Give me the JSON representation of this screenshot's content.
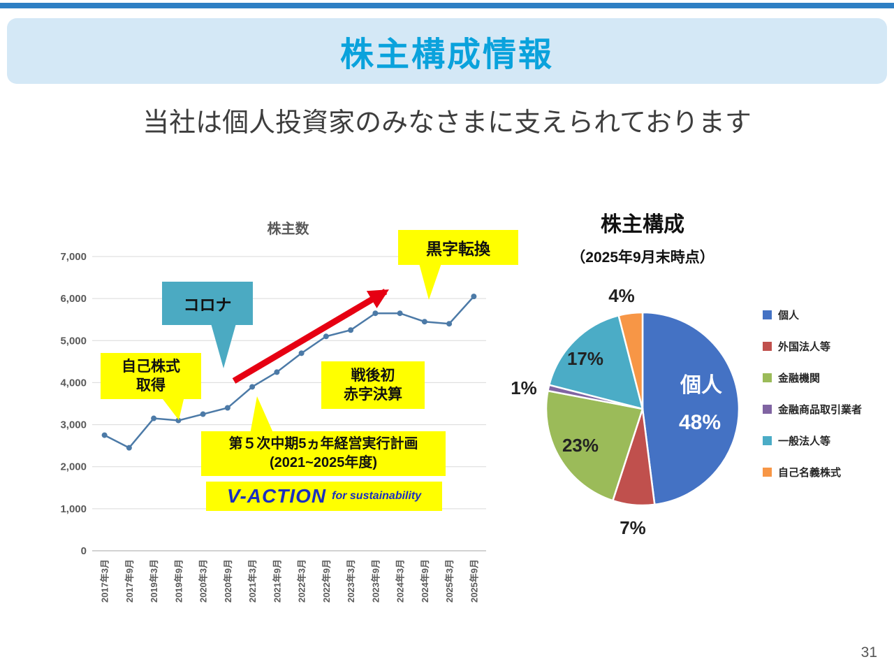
{
  "slide": {
    "title": "株主構成情報",
    "subtitle": "当社は個人投資家のみなさまに支えられております",
    "page_number": "31"
  },
  "chart_data": [
    {
      "type": "line",
      "title": "株主数",
      "categories": [
        "2017年3月",
        "2017年9月",
        "2019年3月",
        "2019年9月",
        "2020年3月",
        "2020年9月",
        "2021年3月",
        "2021年9月",
        "2022年3月",
        "2022年9月",
        "2023年3月",
        "2023年9月",
        "2024年3月",
        "2024年9月",
        "2025年3月",
        "2025年9月"
      ],
      "values": [
        2750,
        2450,
        3150,
        3100,
        3250,
        3400,
        3900,
        4250,
        4700,
        5100,
        5250,
        5650,
        5650,
        5450,
        5400,
        6050
      ],
      "ylim": [
        0,
        7000
      ],
      "ytick_step": 1000,
      "grid": true,
      "line_color": "#4C7AA7",
      "arrow_color": "#E60012",
      "annotations": {
        "corona": "コロナ",
        "treasury_stock": [
          "自己株式",
          "取得"
        ],
        "black_ink": "黒字転換",
        "deficit": [
          "戦後初",
          "赤字決算"
        ],
        "midterm_plan": [
          "第５次中期5ヵ年経営実行計画",
          "(2021~2025年度)"
        ],
        "vaction_logo": [
          "V-ACTION",
          "for sustainability"
        ]
      }
    },
    {
      "type": "pie",
      "title": "株主構成",
      "subtitle": "（2025年9月末時点）",
      "legend_position": "right",
      "slices": [
        {
          "label": "個人",
          "value": 48,
          "pct": "48%",
          "color": "#4472C4"
        },
        {
          "label": "外国法人等",
          "value": 7,
          "pct": "7%",
          "color": "#C0504D"
        },
        {
          "label": "金融機関",
          "value": 23,
          "pct": "23%",
          "color": "#9BBB59"
        },
        {
          "label": "金融商品取引業者",
          "value": 1,
          "pct": "1%",
          "color": "#8064A2"
        },
        {
          "label": "一般法人等",
          "value": 17,
          "pct": "17%",
          "color": "#4BACC6"
        },
        {
          "label": "自己名義株式",
          "value": 4,
          "pct": "4%",
          "color": "#F79646"
        }
      ]
    }
  ]
}
